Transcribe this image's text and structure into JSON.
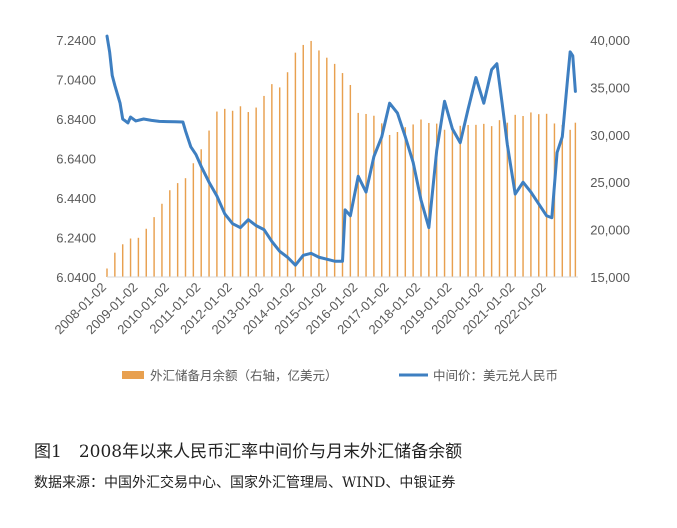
{
  "figure": {
    "caption_number": "图1",
    "caption_title": "2008年以来人民币汇率中间价与月末外汇储备余额",
    "source": "数据来源：中国外汇交易中心、国家外汇管理局、WIND、中银证券"
  },
  "chart_data": {
    "type": "bar+line",
    "title": "",
    "x_axis": {
      "tick_labels": [
        "2008-01-02",
        "2009-01-02",
        "2010-01-02",
        "2011-01-02",
        "2012-01-02",
        "2013-01-02",
        "2014-01-02",
        "2015-01-02",
        "2016-01-02",
        "2017-01-02",
        "2018-01-02",
        "2019-01-02",
        "2020-01-02",
        "2021-01-02",
        "2022-01-02"
      ],
      "range": [
        "2008-01",
        "2023-01"
      ]
    },
    "y_left": {
      "range": [
        6.04,
        7.24
      ],
      "tick_labels": [
        "6.0400",
        "6.2400",
        "6.4400",
        "6.6400",
        "6.8400",
        "7.0400",
        "7.2400"
      ]
    },
    "y_right": {
      "range": [
        15000,
        40000
      ],
      "tick_labels": [
        "15,000",
        "20,000",
        "25,000",
        "30,000",
        "35,000",
        "40,000"
      ]
    },
    "grid": false,
    "legend": {
      "placement": "bottom"
    },
    "series": [
      {
        "name": "外汇储备月余额（右轴，亿美元）",
        "type": "bar",
        "axis": "right",
        "color": "#E8A04F",
        "points": [
          [
            "2008-01",
            15898
          ],
          [
            "2008-04",
            17566
          ],
          [
            "2008-07",
            18452
          ],
          [
            "2008-10",
            19060
          ],
          [
            "2009-01",
            19134
          ],
          [
            "2009-04",
            20089
          ],
          [
            "2009-07",
            21316
          ],
          [
            "2009-10",
            22726
          ],
          [
            "2010-01",
            24153
          ],
          [
            "2010-04",
            24905
          ],
          [
            "2010-07",
            25424
          ],
          [
            "2010-10",
            27000
          ],
          [
            "2011-01",
            28474
          ],
          [
            "2011-04",
            30447
          ],
          [
            "2011-07",
            32453
          ],
          [
            "2011-10",
            32738
          ],
          [
            "2012-01",
            32536
          ],
          [
            "2012-04",
            33010
          ],
          [
            "2012-07",
            32400
          ],
          [
            "2012-10",
            32874
          ],
          [
            "2013-01",
            34100
          ],
          [
            "2013-04",
            35345
          ],
          [
            "2013-07",
            35000
          ],
          [
            "2013-10",
            36600
          ],
          [
            "2014-01",
            38666
          ],
          [
            "2014-04",
            39480
          ],
          [
            "2014-07",
            39900
          ],
          [
            "2014-10",
            38900
          ],
          [
            "2015-01",
            38134
          ],
          [
            "2015-04",
            37481
          ],
          [
            "2015-07",
            36513
          ],
          [
            "2015-10",
            35255
          ],
          [
            "2016-01",
            32309
          ],
          [
            "2016-04",
            32197
          ],
          [
            "2016-07",
            32011
          ],
          [
            "2016-10",
            31207
          ],
          [
            "2017-01",
            29982
          ],
          [
            "2017-04",
            30295
          ],
          [
            "2017-07",
            30807
          ],
          [
            "2017-10",
            31092
          ],
          [
            "2018-01",
            31614
          ],
          [
            "2018-04",
            31248
          ],
          [
            "2018-07",
            31179
          ],
          [
            "2018-10",
            30531
          ],
          [
            "2019-01",
            30879
          ],
          [
            "2019-04",
            30950
          ],
          [
            "2019-07",
            31037
          ],
          [
            "2019-10",
            31052
          ],
          [
            "2020-01",
            31155
          ],
          [
            "2020-04",
            30915
          ],
          [
            "2020-07",
            31544
          ],
          [
            "2020-10",
            31280
          ],
          [
            "2021-01",
            32107
          ],
          [
            "2021-04",
            31982
          ],
          [
            "2021-07",
            32359
          ],
          [
            "2021-10",
            32176
          ],
          [
            "2022-01",
            32216
          ],
          [
            "2022-04",
            31195
          ],
          [
            "2022-07",
            31043
          ],
          [
            "2022-10",
            30524
          ],
          [
            "2022-12",
            31277
          ]
        ]
      },
      {
        "name": "中间价：美元兑人民币",
        "type": "line",
        "axis": "left",
        "color": "#3E7FC1",
        "points": [
          [
            "2008-01",
            7.26
          ],
          [
            "2008-02",
            7.18
          ],
          [
            "2008-03",
            7.06
          ],
          [
            "2008-04",
            7.01
          ],
          [
            "2008-06",
            6.92
          ],
          [
            "2008-07",
            6.84
          ],
          [
            "2008-08",
            6.83
          ],
          [
            "2008-09",
            6.82
          ],
          [
            "2008-10",
            6.85
          ],
          [
            "2008-12",
            6.83
          ],
          [
            "2009-03",
            6.84
          ],
          [
            "2009-06",
            6.833
          ],
          [
            "2009-09",
            6.828
          ],
          [
            "2009-12",
            6.827
          ],
          [
            "2010-03",
            6.826
          ],
          [
            "2010-06",
            6.825
          ],
          [
            "2010-07",
            6.78
          ],
          [
            "2010-09",
            6.7
          ],
          [
            "2010-11",
            6.66
          ],
          [
            "2011-01",
            6.6
          ],
          [
            "2011-04",
            6.52
          ],
          [
            "2011-07",
            6.45
          ],
          [
            "2011-10",
            6.36
          ],
          [
            "2012-01",
            6.31
          ],
          [
            "2012-04",
            6.29
          ],
          [
            "2012-07",
            6.33
          ],
          [
            "2012-10",
            6.3
          ],
          [
            "2013-01",
            6.28
          ],
          [
            "2013-04",
            6.22
          ],
          [
            "2013-07",
            6.17
          ],
          [
            "2013-10",
            6.14
          ],
          [
            "2014-01",
            6.1
          ],
          [
            "2014-04",
            6.15
          ],
          [
            "2014-07",
            6.16
          ],
          [
            "2014-10",
            6.14
          ],
          [
            "2015-01",
            6.13
          ],
          [
            "2015-04",
            6.12
          ],
          [
            "2015-07",
            6.12
          ],
          [
            "2015-08",
            6.38
          ],
          [
            "2015-10",
            6.35
          ],
          [
            "2016-01",
            6.55
          ],
          [
            "2016-04",
            6.47
          ],
          [
            "2016-07",
            6.65
          ],
          [
            "2016-10",
            6.75
          ],
          [
            "2017-01",
            6.92
          ],
          [
            "2017-04",
            6.87
          ],
          [
            "2017-07",
            6.75
          ],
          [
            "2017-10",
            6.62
          ],
          [
            "2018-01",
            6.43
          ],
          [
            "2018-04",
            6.29
          ],
          [
            "2018-07",
            6.68
          ],
          [
            "2018-10",
            6.93
          ],
          [
            "2019-01",
            6.79
          ],
          [
            "2019-04",
            6.72
          ],
          [
            "2019-07",
            6.89
          ],
          [
            "2019-10",
            7.05
          ],
          [
            "2020-01",
            6.92
          ],
          [
            "2020-04",
            7.09
          ],
          [
            "2020-06",
            7.12
          ],
          [
            "2020-08",
            6.92
          ],
          [
            "2020-10",
            6.71
          ],
          [
            "2021-01",
            6.46
          ],
          [
            "2021-04",
            6.52
          ],
          [
            "2021-07",
            6.47
          ],
          [
            "2021-10",
            6.41
          ],
          [
            "2022-01",
            6.35
          ],
          [
            "2022-03",
            6.34
          ],
          [
            "2022-05",
            6.67
          ],
          [
            "2022-07",
            6.75
          ],
          [
            "2022-09",
            7.04
          ],
          [
            "2022-10",
            7.18
          ],
          [
            "2022-11",
            7.16
          ],
          [
            "2022-12",
            6.98
          ]
        ]
      }
    ]
  }
}
